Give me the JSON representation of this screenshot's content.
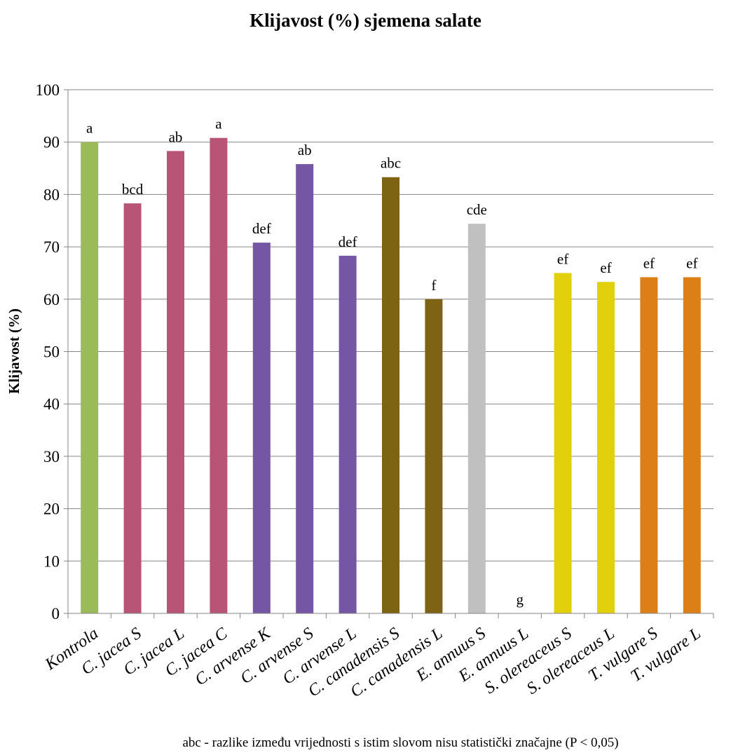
{
  "chart_data": {
    "type": "bar",
    "title": "Klijavost (%) sjemena salate",
    "ylabel": "Klijavost (%)",
    "xlabel": "",
    "ylim": [
      0,
      100
    ],
    "yticks": [
      0,
      10,
      20,
      30,
      40,
      50,
      60,
      70,
      80,
      90,
      100
    ],
    "grid": true,
    "categories": [
      "Kontrola",
      "C. jacea S",
      "C. jacea L",
      "C. jacea C",
      "C. arvense K",
      "C. arvense S",
      "C. arvense L",
      "C. canadensis S",
      "C. canadensis L",
      "E. annuus S",
      "E. annuus L",
      "S. olereaceus S",
      "S. olereaceus L",
      "T. vulgare S",
      "T. vulgare L"
    ],
    "values": [
      90,
      78.3,
      88.3,
      90.8,
      70.8,
      85.8,
      68.3,
      83.3,
      60,
      74.4,
      0,
      65,
      63.3,
      64.2,
      64.2
    ],
    "labels": [
      "a",
      "bcd",
      "ab",
      "a",
      "def",
      "ab",
      "def",
      "abc",
      "f",
      "cde",
      "g",
      "ef",
      "ef",
      "ef",
      "ef"
    ],
    "colors": [
      "#9bbb59",
      "#b85577",
      "#b85577",
      "#b85577",
      "#7556a4",
      "#7556a4",
      "#7556a4",
      "#7f6315",
      "#7f6315",
      "#c0c0c0",
      "#c0c0c0",
      "#e2d00d",
      "#e2d00d",
      "#dc7f16",
      "#dc7f16"
    ],
    "note": "abc - razlike između vrijednosti s istim slovom nisu statistički značajne (P < 0,05)"
  }
}
